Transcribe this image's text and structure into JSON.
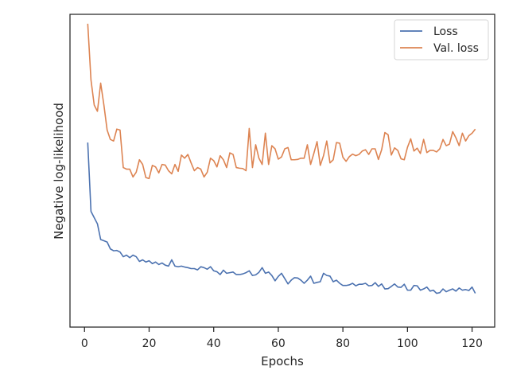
{
  "chart_data": {
    "type": "line",
    "title": "",
    "xlabel": "Epochs",
    "ylabel": "Negative log-likelihood",
    "xlim": [
      -4.5,
      127
    ],
    "ylim": [
      0.0,
      1.0
    ],
    "xticks": [
      0,
      20,
      40,
      60,
      80,
      100,
      120
    ],
    "yticks_shown": false,
    "grid": false,
    "legend_position": "top-right",
    "series": [
      {
        "name": "Loss",
        "color": "#4c72b0",
        "x": [
          1,
          2,
          3,
          4,
          5,
          6,
          7,
          8,
          9,
          10,
          11,
          12,
          13,
          14,
          15,
          16,
          17,
          18,
          19,
          20,
          21,
          22,
          23,
          24,
          25,
          26,
          27,
          28,
          29,
          30,
          31,
          32,
          33,
          34,
          35,
          36,
          37,
          38,
          39,
          40,
          41,
          42,
          43,
          44,
          45,
          46,
          47,
          48,
          49,
          50,
          51,
          52,
          53,
          54,
          55,
          56,
          57,
          58,
          59,
          60,
          61,
          62,
          63,
          64,
          65,
          66,
          67,
          68,
          69,
          70,
          71,
          72,
          73,
          74,
          75,
          76,
          77,
          78,
          79,
          80,
          81,
          82,
          83,
          84,
          85,
          86,
          87,
          88,
          89,
          90,
          91,
          92,
          93,
          94,
          95,
          96,
          97,
          98,
          99,
          100,
          101,
          102,
          103,
          104,
          105,
          106,
          107,
          108,
          109,
          110,
          111,
          112,
          113,
          114,
          115,
          116,
          117,
          118,
          119,
          120,
          121
        ],
        "values": [
          0.59,
          0.37,
          0.35,
          0.33,
          0.28,
          0.276,
          0.272,
          0.25,
          0.244,
          0.245,
          0.24,
          0.225,
          0.23,
          0.222,
          0.23,
          0.225,
          0.21,
          0.215,
          0.208,
          0.212,
          0.203,
          0.208,
          0.2,
          0.205,
          0.198,
          0.195,
          0.215,
          0.195,
          0.193,
          0.195,
          0.192,
          0.19,
          0.187,
          0.187,
          0.183,
          0.193,
          0.19,
          0.185,
          0.193,
          0.18,
          0.177,
          0.168,
          0.182,
          0.172,
          0.174,
          0.176,
          0.168,
          0.168,
          0.17,
          0.174,
          0.18,
          0.165,
          0.167,
          0.175,
          0.19,
          0.172,
          0.176,
          0.165,
          0.148,
          0.162,
          0.172,
          0.155,
          0.138,
          0.15,
          0.158,
          0.157,
          0.15,
          0.14,
          0.15,
          0.163,
          0.14,
          0.143,
          0.145,
          0.172,
          0.165,
          0.163,
          0.145,
          0.15,
          0.14,
          0.133,
          0.133,
          0.135,
          0.14,
          0.132,
          0.137,
          0.137,
          0.14,
          0.132,
          0.133,
          0.142,
          0.13,
          0.138,
          0.122,
          0.123,
          0.13,
          0.138,
          0.128,
          0.127,
          0.137,
          0.118,
          0.118,
          0.133,
          0.132,
          0.118,
          0.122,
          0.128,
          0.115,
          0.118,
          0.108,
          0.11,
          0.122,
          0.113,
          0.118,
          0.122,
          0.115,
          0.125,
          0.118,
          0.12,
          0.117,
          0.128,
          0.108
        ]
      },
      {
        "name": "Val. loss",
        "color": "#dd8452",
        "x": [
          1,
          2,
          3,
          4,
          5,
          6,
          7,
          8,
          9,
          10,
          11,
          12,
          13,
          14,
          15,
          16,
          17,
          18,
          19,
          20,
          21,
          22,
          23,
          24,
          25,
          26,
          27,
          28,
          29,
          30,
          31,
          32,
          33,
          34,
          35,
          36,
          37,
          38,
          39,
          40,
          41,
          42,
          43,
          44,
          45,
          46,
          47,
          48,
          49,
          50,
          51,
          52,
          53,
          54,
          55,
          56,
          57,
          58,
          59,
          60,
          61,
          62,
          63,
          64,
          65,
          66,
          67,
          68,
          69,
          70,
          71,
          72,
          73,
          74,
          75,
          76,
          77,
          78,
          79,
          80,
          81,
          82,
          83,
          84,
          85,
          86,
          87,
          88,
          89,
          90,
          91,
          92,
          93,
          94,
          95,
          96,
          97,
          98,
          99,
          100,
          101,
          102,
          103,
          104,
          105,
          106,
          107,
          108,
          109,
          110,
          111,
          112,
          113,
          114,
          115,
          116,
          117,
          118,
          119,
          120,
          121
        ],
        "values": [
          0.97,
          0.79,
          0.71,
          0.69,
          0.78,
          0.71,
          0.63,
          0.6,
          0.595,
          0.633,
          0.63,
          0.51,
          0.505,
          0.505,
          0.48,
          0.495,
          0.535,
          0.52,
          0.478,
          0.475,
          0.517,
          0.512,
          0.493,
          0.52,
          0.518,
          0.5,
          0.49,
          0.52,
          0.498,
          0.55,
          0.54,
          0.552,
          0.525,
          0.5,
          0.51,
          0.505,
          0.48,
          0.495,
          0.54,
          0.532,
          0.512,
          0.548,
          0.535,
          0.51,
          0.557,
          0.552,
          0.51,
          0.508,
          0.507,
          0.5,
          0.635,
          0.51,
          0.583,
          0.54,
          0.52,
          0.62,
          0.52,
          0.58,
          0.57,
          0.537,
          0.544,
          0.57,
          0.574,
          0.535,
          0.535,
          0.536,
          0.54,
          0.54,
          0.583,
          0.52,
          0.555,
          0.593,
          0.517,
          0.548,
          0.595,
          0.525,
          0.535,
          0.59,
          0.588,
          0.543,
          0.53,
          0.545,
          0.553,
          0.548,
          0.552,
          0.563,
          0.567,
          0.552,
          0.57,
          0.57,
          0.536,
          0.567,
          0.622,
          0.615,
          0.55,
          0.573,
          0.565,
          0.538,
          0.535,
          0.575,
          0.602,
          0.563,
          0.572,
          0.555,
          0.6,
          0.558,
          0.565,
          0.565,
          0.56,
          0.57,
          0.6,
          0.58,
          0.585,
          0.625,
          0.605,
          0.58,
          0.62,
          0.595,
          0.612,
          0.62,
          0.633
        ]
      }
    ]
  }
}
